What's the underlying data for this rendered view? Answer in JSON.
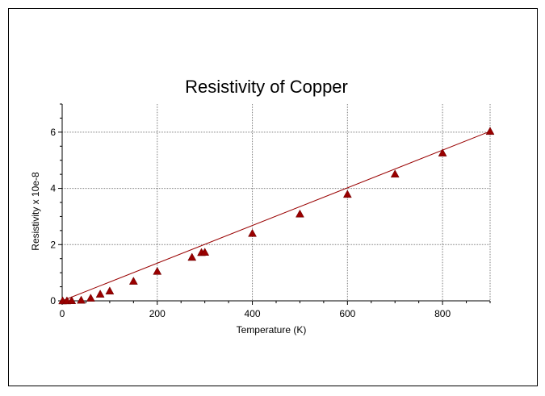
{
  "chart_data": {
    "type": "scatter",
    "title": "Resistivity of Copper",
    "xlabel": "Temperature (K)",
    "ylabel": "Resistivity x 10e-8",
    "xlim": [
      0,
      900
    ],
    "ylim": [
      0,
      7
    ],
    "xticks": [
      0,
      200,
      400,
      600,
      800
    ],
    "yticks": [
      0,
      2,
      4,
      6
    ],
    "grid": true,
    "marker": "triangle",
    "color": "#990000",
    "line_color": "#990000",
    "fit_line": {
      "x": [
        0,
        900
      ],
      "y": [
        0,
        6.03
      ]
    },
    "series": [
      {
        "x": [
          1,
          10,
          20,
          40,
          60,
          80,
          100,
          150,
          200,
          273,
          293,
          300,
          400,
          500,
          600,
          700,
          800,
          900
        ],
        "y": [
          0.002,
          0.002,
          0.008,
          0.024,
          0.097,
          0.24,
          0.35,
          0.7,
          1.05,
          1.55,
          1.72,
          1.73,
          2.4,
          3.09,
          3.79,
          4.51,
          5.26,
          6.03
        ]
      }
    ]
  }
}
